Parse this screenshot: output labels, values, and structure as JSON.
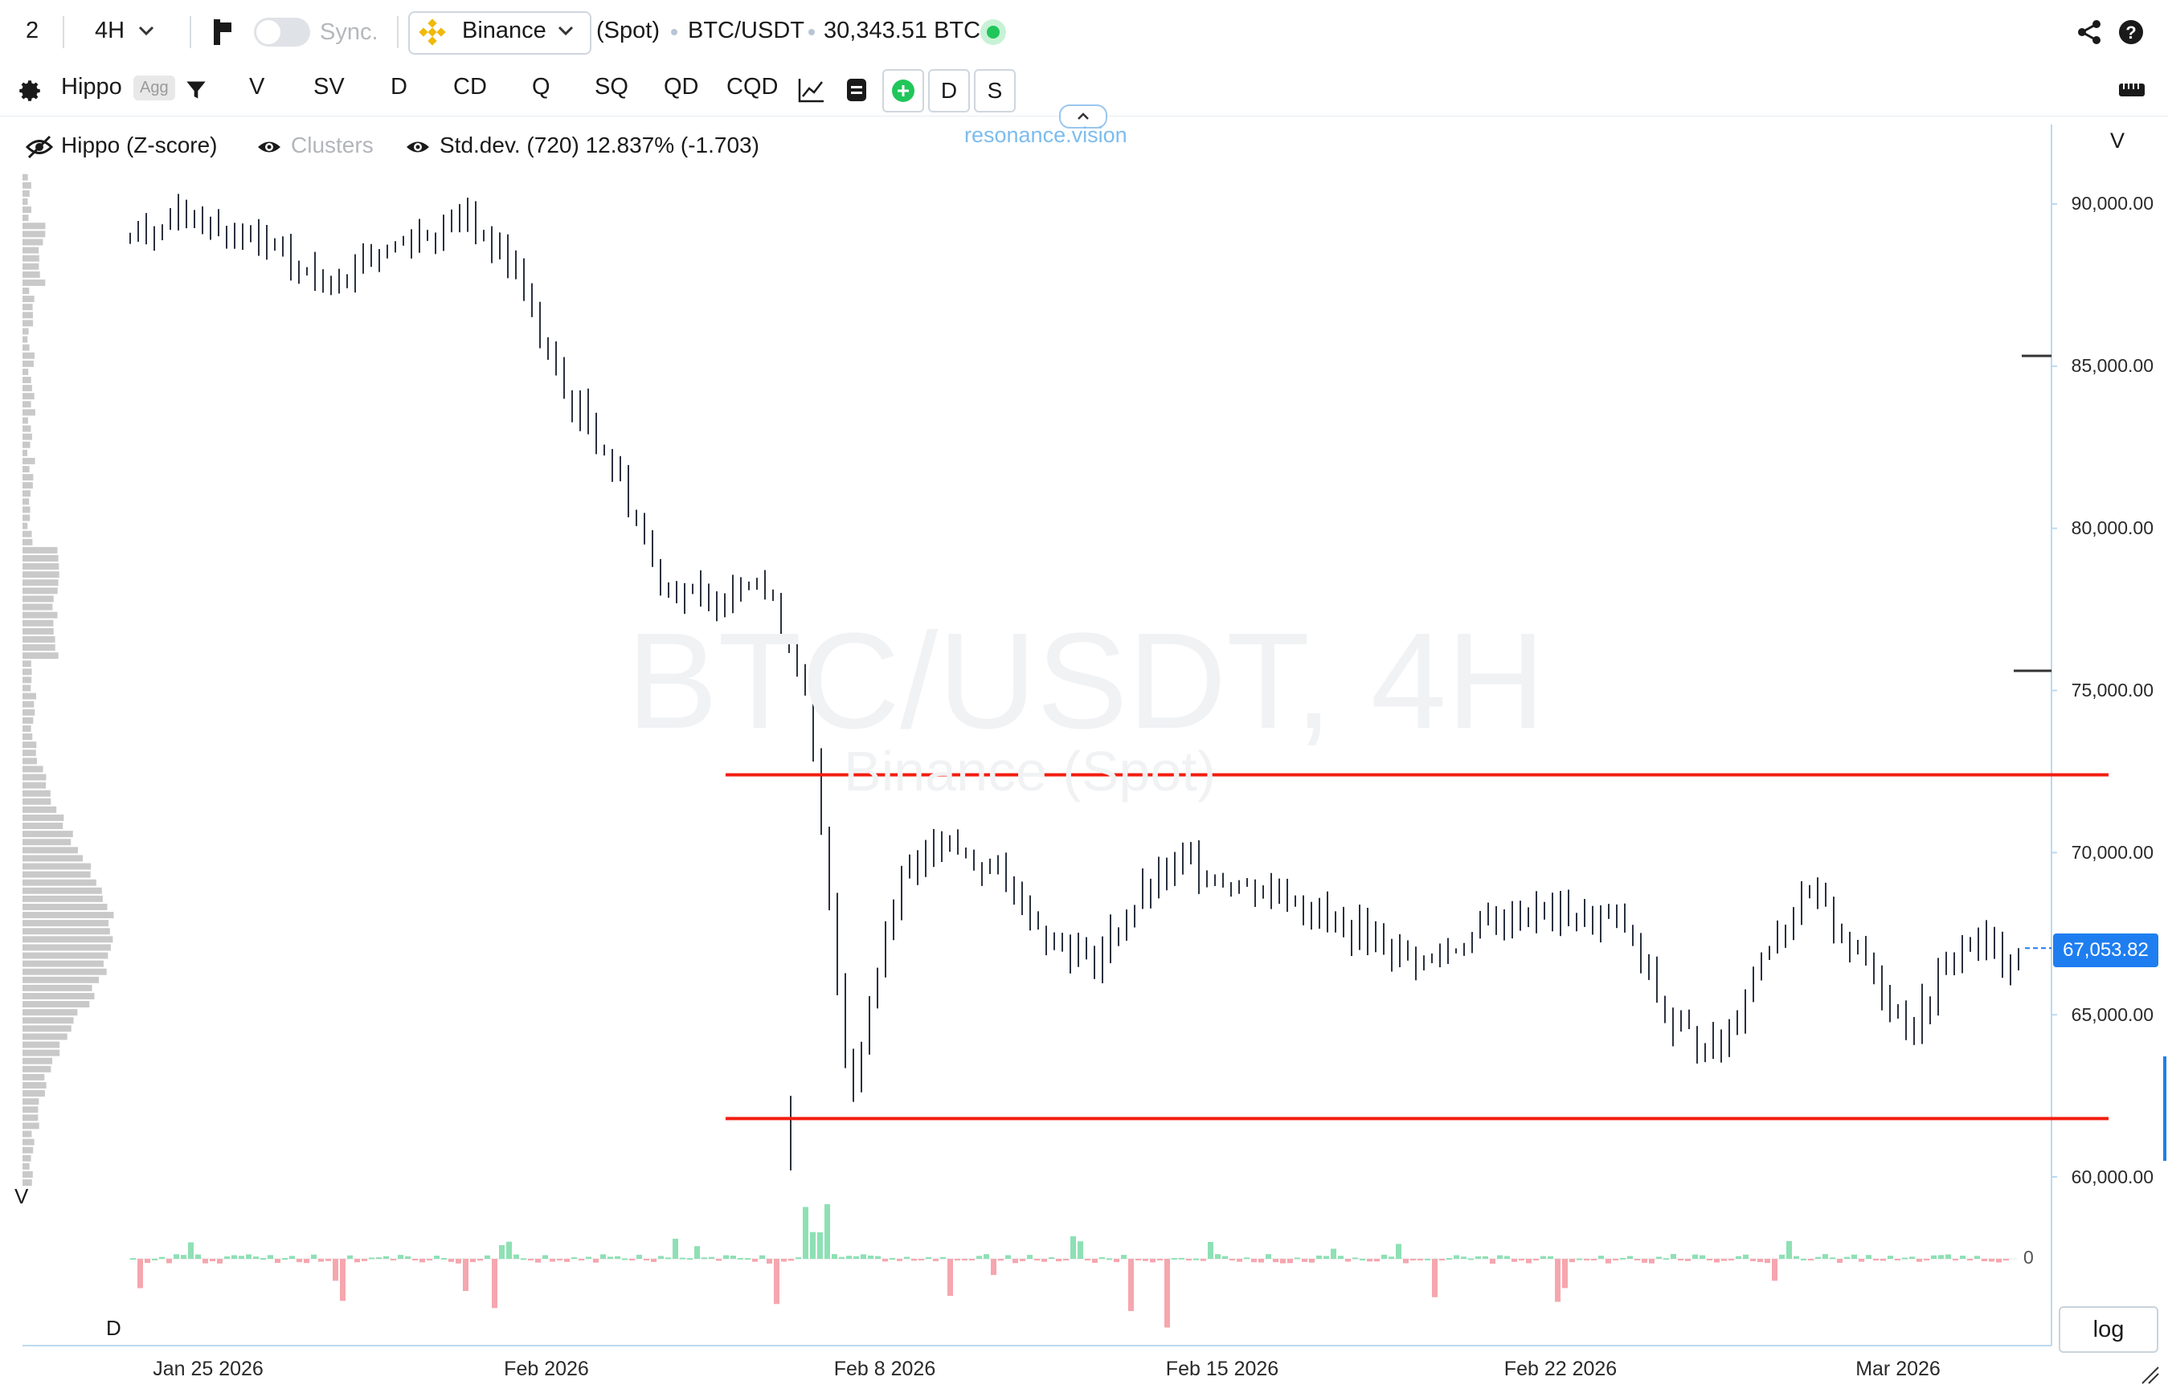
{
  "topbar": {
    "layout_count": "2",
    "timeframe": "4H",
    "sync_label": "Sync.",
    "exchange": "Binance",
    "market_type": "(Spot)",
    "pair": "BTC/USDT",
    "volume": "30,343.51 BTC"
  },
  "toolbar": {
    "indicator_name": "Hippo",
    "agg_badge": "Agg",
    "tools": [
      "V",
      "SV",
      "D",
      "CD",
      "Q",
      "SQ",
      "QD",
      "CQD"
    ],
    "d_button": "D",
    "s_button": "S"
  },
  "legend": {
    "hippo": "Hippo (Z-score)",
    "clusters": "Clusters",
    "stddev": "Std.dev. (720) 12.837% (-1.703)",
    "brand": "resonance.vision",
    "right_v": "V",
    "left_v": "V",
    "left_d": "D",
    "zero_label": "0"
  },
  "watermark": {
    "main": "BTC/USDT, 4H",
    "sub": "Binance (Spot)"
  },
  "price_axis": [
    "90,000.00",
    "85,000.00",
    "80,000.00",
    "75,000.00",
    "70,000.00",
    "65,000.00",
    "60,000.00"
  ],
  "current_price": "67,053.82",
  "date_axis": [
    "Jan 25 2026",
    "Feb 2026",
    "Feb 8 2026",
    "Feb 15 2026",
    "Feb 22 2026",
    "Mar 2026"
  ],
  "log_button": "log",
  "colors": {
    "accent": "#1e7ef0",
    "level_line": "#f21d10",
    "up_delta": "#8ee0b4",
    "down_delta": "#f6a6ae",
    "candle": "#2b3240"
  },
  "chart_data": {
    "type": "ohlc",
    "pair": "BTC/USDT",
    "timeframe": "4H",
    "ylim": [
      59500,
      91500
    ],
    "horizontal_levels": [
      72400,
      61800
    ],
    "close_path": [
      [
        "2026-01-22",
        89000
      ],
      [
        "2026-01-23",
        89600
      ],
      [
        "2026-01-24",
        89200
      ],
      [
        "2026-01-25",
        88500
      ],
      [
        "2026-01-26",
        87600
      ],
      [
        "2026-01-27",
        88400
      ],
      [
        "2026-01-28",
        89000
      ],
      [
        "2026-01-29",
        89600
      ],
      [
        "2026-01-30",
        88200
      ],
      [
        "2026-01-31",
        84300
      ],
      [
        "2026-02-01",
        82300
      ],
      [
        "2026-02-02",
        78600
      ],
      [
        "2026-02-03",
        77600
      ],
      [
        "2026-02-04",
        78800
      ],
      [
        "2026-02-05",
        75600
      ],
      [
        "2026-02-06",
        62500
      ],
      [
        "2026-02-07",
        69500
      ],
      [
        "2026-02-08",
        70200
      ],
      [
        "2026-02-09",
        69500
      ],
      [
        "2026-02-10",
        67600
      ],
      [
        "2026-02-11",
        66600
      ],
      [
        "2026-02-12",
        68600
      ],
      [
        "2026-02-13",
        69800
      ],
      [
        "2026-02-14",
        69000
      ],
      [
        "2026-02-15",
        68800
      ],
      [
        "2026-02-16",
        67800
      ],
      [
        "2026-02-17",
        67200
      ],
      [
        "2026-02-18",
        66600
      ],
      [
        "2026-02-19",
        67600
      ],
      [
        "2026-02-20",
        68200
      ],
      [
        "2026-02-21",
        68000
      ],
      [
        "2026-02-22",
        67800
      ],
      [
        "2026-02-23",
        64600
      ],
      [
        "2026-02-24",
        63900
      ],
      [
        "2026-02-25",
        67400
      ],
      [
        "2026-02-26",
        68600
      ],
      [
        "2026-02-27",
        66600
      ],
      [
        "2026-02-28",
        64600
      ],
      [
        "2026-03-01",
        67300
      ],
      [
        "2026-03-02",
        66800
      ],
      [
        "2026-03-03",
        67200
      ],
      [
        "2026-03-04",
        68900
      ],
      [
        "2026-03-05",
        67100
      ]
    ]
  }
}
